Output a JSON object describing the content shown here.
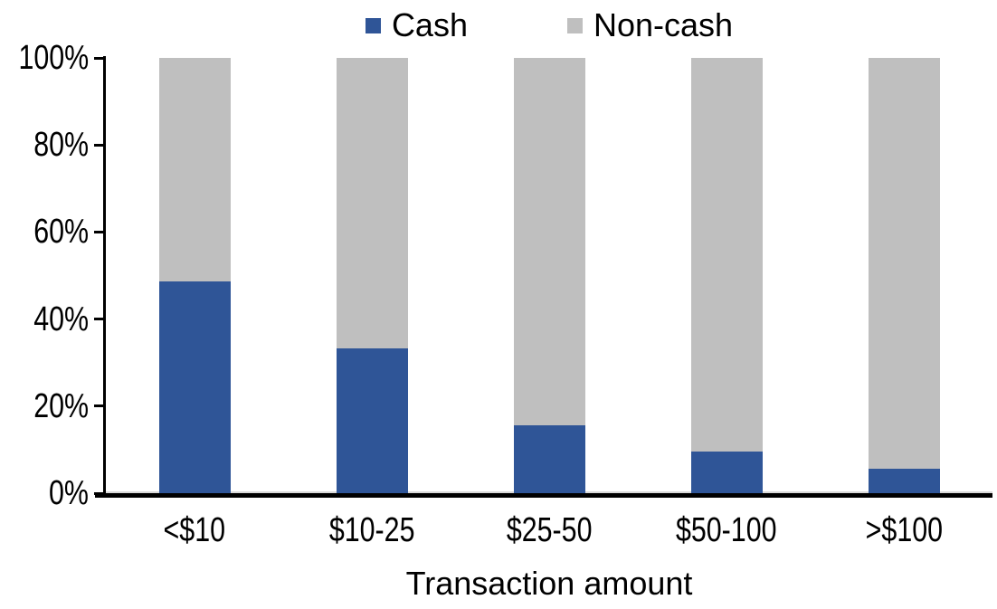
{
  "chart_data": {
    "type": "bar",
    "stacked": true,
    "title": "",
    "xlabel": "Transaction amount",
    "ylabel": "",
    "categories": [
      "<$10",
      "$10-25",
      "$25-50",
      "$50-100",
      ">$100"
    ],
    "series": [
      {
        "name": "Cash",
        "color": "#2F5597",
        "values": [
          48.6,
          33.3,
          15.6,
          9.6,
          5.6
        ]
      },
      {
        "name": "Non-cash",
        "color": "#BFBFBF",
        "values": [
          51.4,
          66.7,
          84.4,
          90.4,
          94.4
        ]
      }
    ],
    "ylim": [
      0,
      100
    ],
    "yticks": [
      "0%",
      "20%",
      "40%",
      "60%",
      "80%",
      "100%"
    ],
    "ytick_values": [
      0,
      20,
      40,
      60,
      80,
      100
    ],
    "grid": false,
    "legend_position": "top",
    "axis_color": "#000000",
    "text_color": "#000000"
  }
}
